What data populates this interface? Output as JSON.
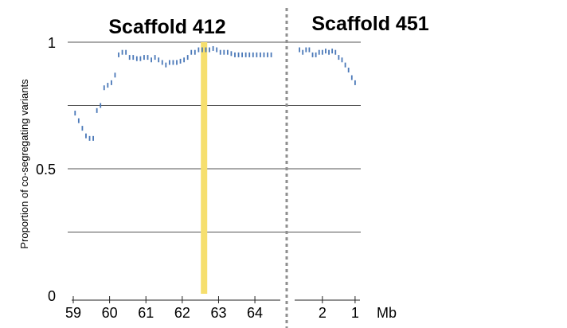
{
  "chart_data": {
    "type": "scatter",
    "ylabel": "Proportion of co-segregating  variants",
    "xunit": "Mb",
    "ylim": [
      0,
      1
    ],
    "yticks": [
      {
        "value": 0,
        "label": "0"
      },
      {
        "value": 0.5,
        "label": "0.5"
      },
      {
        "value": 1,
        "label": "1"
      }
    ],
    "gridlines_y": [
      0.25,
      0.5,
      0.75,
      1
    ],
    "marker_color": "#4a78b8",
    "highlight_color": "#f6df6e",
    "divider_color": "#8f8f8f",
    "panels": [
      {
        "title": "Scaffold 412",
        "xlim": [
          59,
          64.7
        ],
        "xticks": [
          {
            "value": 59,
            "label": "59"
          },
          {
            "value": 60,
            "label": "60"
          },
          {
            "value": 61,
            "label": "61"
          },
          {
            "value": 62,
            "label": "62"
          },
          {
            "value": 63,
            "label": "63"
          },
          {
            "value": 64,
            "label": "64"
          }
        ],
        "highlight_x": 62.6,
        "x": [
          59.05,
          59.15,
          59.25,
          59.35,
          59.45,
          59.55,
          59.65,
          59.75,
          59.85,
          59.95,
          60.05,
          60.15,
          60.25,
          60.35,
          60.45,
          60.55,
          60.65,
          60.75,
          60.85,
          60.95,
          61.05,
          61.15,
          61.25,
          61.35,
          61.45,
          61.55,
          61.65,
          61.75,
          61.85,
          61.95,
          62.05,
          62.15,
          62.25,
          62.35,
          62.45,
          62.55,
          62.65,
          62.75,
          62.85,
          62.95,
          63.05,
          63.15,
          63.25,
          63.35,
          63.45,
          63.55,
          63.65,
          63.75,
          63.85,
          63.95,
          64.05,
          64.15,
          64.25,
          64.35,
          64.45
        ],
        "y": [
          0.72,
          0.69,
          0.66,
          0.63,
          0.62,
          0.62,
          0.73,
          0.75,
          0.82,
          0.83,
          0.84,
          0.87,
          0.95,
          0.96,
          0.96,
          0.94,
          0.94,
          0.935,
          0.935,
          0.94,
          0.94,
          0.93,
          0.94,
          0.93,
          0.92,
          0.91,
          0.92,
          0.92,
          0.92,
          0.925,
          0.93,
          0.94,
          0.96,
          0.96,
          0.97,
          0.97,
          0.97,
          0.97,
          0.975,
          0.97,
          0.96,
          0.96,
          0.96,
          0.955,
          0.95,
          0.95,
          0.95,
          0.95,
          0.95,
          0.95,
          0.95,
          0.95,
          0.95,
          0.95,
          0.95
        ]
      },
      {
        "title": "Scaffold 451",
        "xlim": [
          2.8,
          0.9
        ],
        "xticks": [
          {
            "value": 2,
            "label": "2"
          },
          {
            "value": 1,
            "label": "1"
          }
        ],
        "x": [
          2.7,
          2.6,
          2.5,
          2.4,
          2.3,
          2.2,
          2.1,
          2.0,
          1.9,
          1.8,
          1.7,
          1.6,
          1.5,
          1.4,
          1.3,
          1.2,
          1.1,
          1.0
        ],
        "y": [
          0.97,
          0.96,
          0.97,
          0.97,
          0.95,
          0.95,
          0.96,
          0.96,
          0.965,
          0.96,
          0.965,
          0.96,
          0.94,
          0.93,
          0.91,
          0.89,
          0.86,
          0.84
        ]
      }
    ]
  }
}
